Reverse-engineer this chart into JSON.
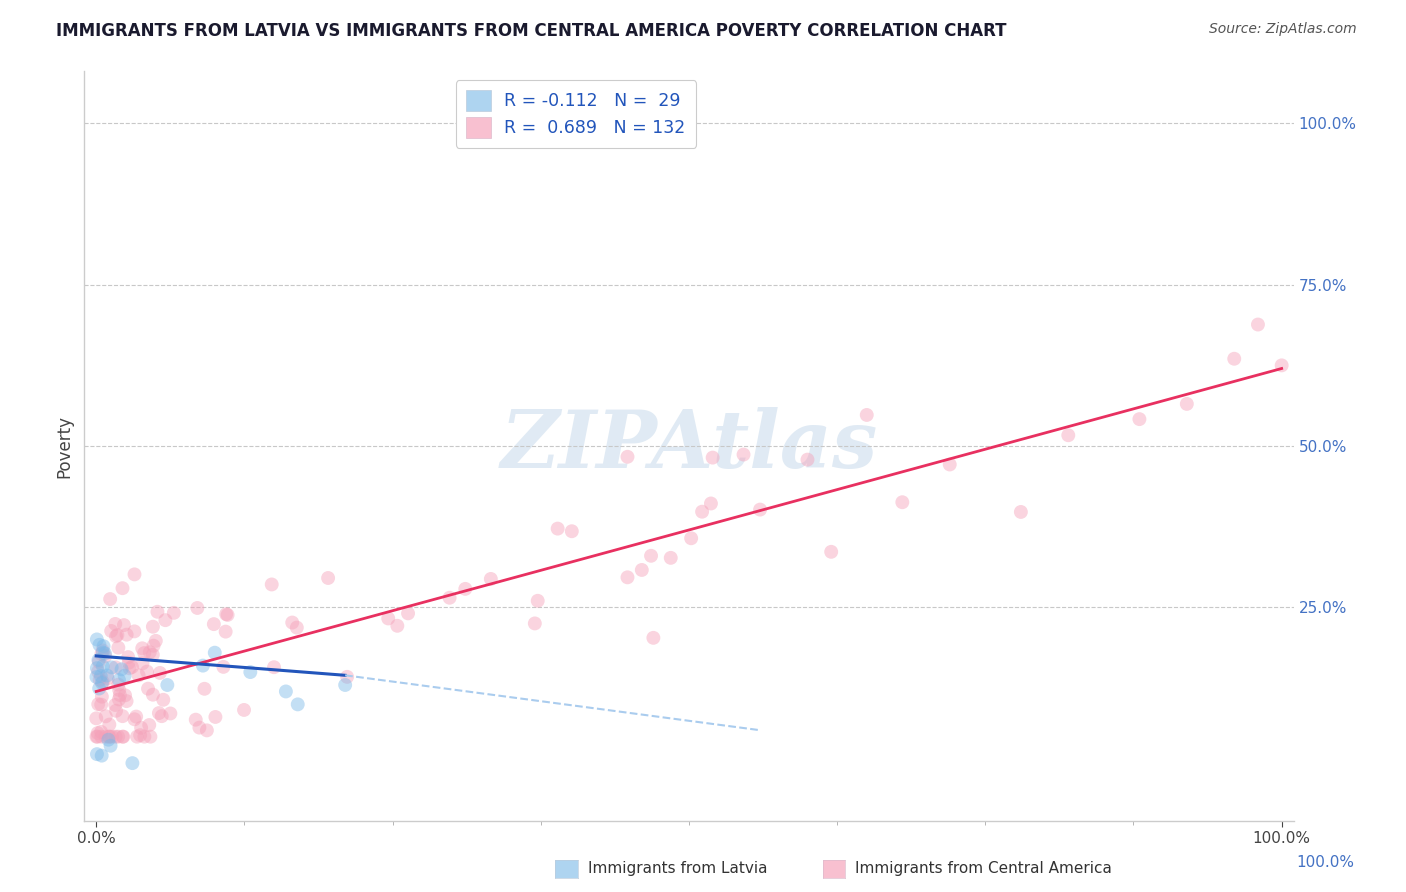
{
  "title": "IMMIGRANTS FROM LATVIA VS IMMIGRANTS FROM CENTRAL AMERICA POVERTY CORRELATION CHART",
  "source": "Source: ZipAtlas.com",
  "ylabel": "Poverty",
  "r_latvia": -0.112,
  "n_latvia": 29,
  "r_central": 0.689,
  "n_central": 132,
  "latvia_color": "#7ab8e8",
  "central_color": "#f4a0b8",
  "latvia_line_color": "#2255bb",
  "central_line_color": "#e83060",
  "latvia_line_dash_color": "#aaccee",
  "background_color": "#ffffff",
  "watermark_color": "#ccdded",
  "scatter_alpha": 0.45,
  "scatter_size": 100,
  "legend_label_latvia": "R = -0.112   N =  29",
  "legend_label_central": "R =  0.689   N = 132",
  "legend_color_latvia": "#aed4f0",
  "legend_color_central": "#f8c0d0",
  "grid_color": "#c8c8c8",
  "axis_right_label_color": "#4472c4",
  "title_color": "#1a1a2e",
  "source_color": "#555555",
  "tick_label_color": "#444444"
}
